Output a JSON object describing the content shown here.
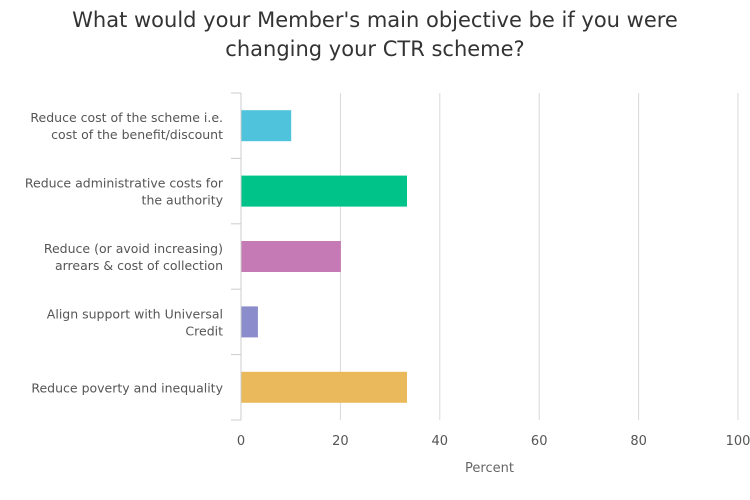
{
  "chart_data": {
    "type": "bar",
    "orientation": "horizontal",
    "title": "What would your Member's main objective be if you were\nchanging your CTR scheme?",
    "categories": [
      "Reduce cost of the scheme i.e.\ncost of the benefit/discount",
      "Reduce administrative costs for\nthe authority",
      "Reduce (or avoid increasing)\narrears & cost of collection",
      "Align support with Universal\nCredit",
      "Reduce poverty and inequality"
    ],
    "values": [
      10,
      33.3,
      20,
      3.3,
      33.3
    ],
    "colors": [
      "#4fc3db",
      "#00c389",
      "#c67ab5",
      "#8a8ccc",
      "#eab95c"
    ],
    "xlabel": "Percent",
    "ylabel": "",
    "xlim": [
      0,
      100
    ],
    "xticks": [
      0,
      20,
      40,
      60,
      80,
      100
    ],
    "grid": true,
    "legend": "none"
  }
}
